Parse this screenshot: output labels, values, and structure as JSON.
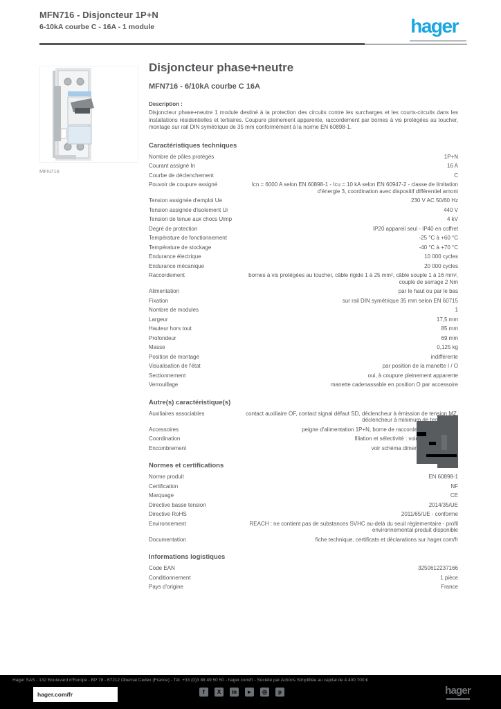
{
  "brand": {
    "accent_blue": "#1aa6df",
    "text_gray": "#54565a",
    "footer_black": "#000000"
  },
  "header": {
    "product_line1": "MFN716 - Disjoncteur 1P+N",
    "product_line2": "6-10kA courbe C - 16A - 1 module",
    "logo_text": "hager"
  },
  "product": {
    "image_name": "circuit-breaker-photo",
    "caption": "MFN716"
  },
  "main": {
    "title": "Disjoncteur phase+neutre",
    "subtitle": "MFN716 - 6/10kA courbe C 16A",
    "description_label": "Description :",
    "description": "Disjoncteur phase+neutre 1 module destiné à la protection des circuits contre les surcharges et les courts-circuits dans les installations résidentielles et tertiaires. Coupure pleinement apparente, raccordement par bornes à vis protégées au toucher, montage sur rail DIN symétrique de 35 mm conformément à la norme EN 60898-1."
  },
  "sections": [
    {
      "title": "Caractéristiques techniques",
      "rows": [
        {
          "label": "Nombre de pôles protégés",
          "value": "1P+N"
        },
        {
          "label": "Courant assigné In",
          "value": "16 A"
        },
        {
          "label": "Courbe de déclenchement",
          "value": "C"
        },
        {
          "label": "Pouvoir de coupure assigné",
          "value": "Icn = 6000 A selon EN 60898-1 - Icu = 10 kA selon EN 60947-2 - classe de limitation d'énergie 3, coordination avec dispositif différentiel amont"
        },
        {
          "label": "Tension assignée d'emploi Ue",
          "value": "230 V AC 50/60 Hz"
        },
        {
          "label": "Tension assignée d'isolement Ui",
          "value": "440 V"
        },
        {
          "label": "Tension de tenue aux chocs Uimp",
          "value": "4 kV"
        },
        {
          "label": "Degré de protection",
          "value": "IP20 appareil seul - IP40 en coffret"
        },
        {
          "label": "Température de fonctionnement",
          "value": "-25 °C à +60 °C"
        },
        {
          "label": "Température de stockage",
          "value": "-40 °C à +70 °C"
        },
        {
          "label": "Endurance électrique",
          "value": "10 000 cycles"
        },
        {
          "label": "Endurance mécanique",
          "value": "20 000 cycles"
        },
        {
          "label": "Raccordement",
          "value": "bornes à vis protégées au toucher, câble rigide 1 à 25 mm², câble souple 1 à 16 mm², couple de serrage 2 Nm"
        },
        {
          "label": "Alimentation",
          "value": "par le haut ou par le bas"
        },
        {
          "label": "Fixation",
          "value": "sur rail DIN symétrique 35 mm selon EN 60715"
        },
        {
          "label": "Nombre de modules",
          "value": "1"
        },
        {
          "label": "Largeur",
          "value": "17,5 mm"
        },
        {
          "label": "Hauteur hors tout",
          "value": "85 mm"
        },
        {
          "label": "Profondeur",
          "value": "69 mm"
        },
        {
          "label": "Masse",
          "value": "0,125 kg"
        },
        {
          "label": "Position de montage",
          "value": "indifférente"
        },
        {
          "label": "Visualisation de l'état",
          "value": "par position de la manette I / O"
        },
        {
          "label": "Sectionnement",
          "value": "oui, à coupure pleinement apparente"
        },
        {
          "label": "Verrouillage",
          "value": "manette cadenassable en position O par accessoire"
        }
      ]
    },
    {
      "title": "Autre(s) caractéristique(s)",
      "drawing": true,
      "rows": [
        {
          "label": "Auxiliaires associables",
          "value": "contact auxiliaire OF, contact signal défaut SD, déclencheur à émission de tension MZ, déclencheur à minimum de tension MN"
        },
        {
          "label": "Accessoires",
          "value": "peigne d'alimentation 1P+N, borne de raccordement, obturateur"
        },
        {
          "label": "Coordination",
          "value": "filiation et sélectivité : voir guide technique"
        },
        {
          "label": "Encombrement",
          "value": "voir schéma dimensionnel ci-contre"
        }
      ]
    },
    {
      "title": "Normes et certifications",
      "rows": [
        {
          "label": "Norme produit",
          "value": "EN 60898-1"
        },
        {
          "label": "Certification",
          "value": "NF"
        },
        {
          "label": "Marquage",
          "value": "CE"
        },
        {
          "label": "Directive basse tension",
          "value": "2014/35/UE"
        },
        {
          "label": "Directive RoHS",
          "value": "2011/65/UE - conforme"
        },
        {
          "label": "Environnement",
          "value": "REACH : ne contient pas de substances SVHC au-delà du seuil réglementaire - profil environnemental produit disponible"
        },
        {
          "label": "Documentation",
          "value": "fiche technique, certificats et déclarations sur hager.com/fr"
        }
      ]
    },
    {
      "title": "Informations logistiques",
      "rows": [
        {
          "label": "Code EAN",
          "value": "3250612237166"
        },
        {
          "label": "Conditionnement",
          "value": "1 pièce"
        },
        {
          "label": "Pays d'origine",
          "value": "France"
        }
      ]
    }
  ],
  "footer": {
    "address": "Hager SAS - 132 Boulevard d'Europe - BP 78 - 67212 Obernai Cedex (France) - Tél. +33 (0)3 88 49 50 50 - hager.com/fr - Société par Actions Simplifiée au capital de 4 400 700 €",
    "site_label": "hager.com/fr",
    "logo_text": "hager",
    "social": [
      {
        "name": "facebook-icon",
        "glyph": "f"
      },
      {
        "name": "x-icon",
        "glyph": "X"
      },
      {
        "name": "linkedin-icon",
        "glyph": "in"
      },
      {
        "name": "youtube-icon",
        "glyph": "►"
      },
      {
        "name": "instagram-icon",
        "glyph": "◎"
      },
      {
        "name": "pinterest-icon",
        "glyph": "p"
      }
    ]
  }
}
